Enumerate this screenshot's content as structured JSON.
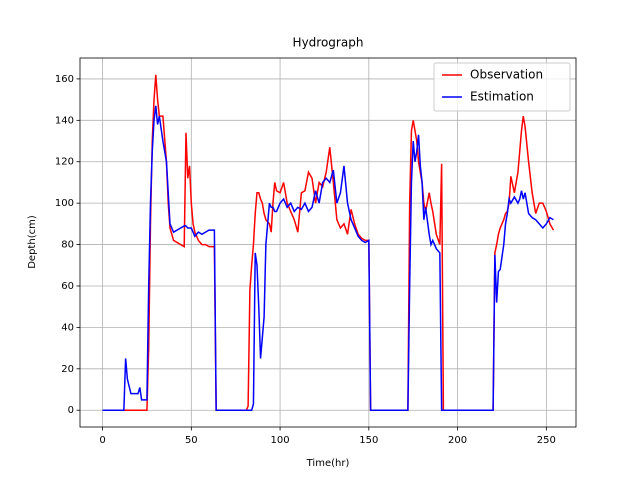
{
  "chart_data": {
    "type": "line",
    "title": "Hydrograph",
    "x_label": "Time(hr)",
    "y_label": "Depth(cm)",
    "x": [
      0,
      12,
      13,
      14,
      16,
      20,
      21,
      22,
      25,
      26,
      27,
      28,
      29,
      30,
      31,
      32,
      34,
      36,
      37,
      38,
      40,
      44,
      46,
      47,
      48,
      49,
      50,
      51,
      52,
      54,
      56,
      58,
      60,
      63,
      64,
      81,
      82,
      83,
      84,
      85,
      86,
      87,
      88,
      89,
      90,
      91,
      92,
      94,
      95,
      96,
      97,
      98,
      100,
      102,
      104,
      106,
      108,
      110,
      112,
      114,
      116,
      118,
      120,
      122,
      124,
      126,
      128,
      130,
      132,
      134,
      136,
      138,
      140,
      142,
      144,
      146,
      148,
      150,
      151,
      172,
      173,
      174,
      175,
      176,
      177,
      178,
      179,
      180,
      181,
      182,
      184,
      185,
      186,
      188,
      190,
      191,
      192,
      220,
      221,
      222,
      223,
      224,
      226,
      227,
      228,
      229,
      230,
      232,
      234,
      235,
      236,
      237,
      238,
      240,
      242,
      244,
      246,
      248,
      250,
      252,
      254
    ],
    "series": [
      {
        "name": "Observation",
        "color": "#ff0000",
        "values": [
          0,
          0,
          0,
          0,
          0,
          0,
          0,
          0,
          0,
          30,
          90,
          130,
          150,
          162,
          150,
          142,
          142,
          120,
          100,
          88,
          82,
          80,
          79,
          134,
          112,
          118,
          100,
          90,
          86,
          82,
          80,
          80,
          79,
          79,
          0,
          0,
          2,
          58,
          70,
          80,
          95,
          105,
          105,
          102,
          100,
          95,
          92,
          90,
          86,
          100,
          110,
          106,
          105,
          110,
          100,
          96,
          92,
          86,
          105,
          106,
          115,
          112,
          100,
          110,
          108,
          115,
          127,
          110,
          92,
          88,
          90,
          85,
          97,
          90,
          85,
          83,
          82,
          82,
          0,
          0,
          100,
          135,
          140,
          135,
          130,
          120,
          115,
          110,
          100,
          96,
          105,
          100,
          96,
          85,
          80,
          119,
          0,
          0,
          76,
          80,
          85,
          88,
          92,
          95,
          96,
          100,
          113,
          105,
          115,
          125,
          135,
          142,
          137,
          120,
          105,
          95,
          100,
          100,
          96,
          90,
          87
        ]
      },
      {
        "name": "Estimation",
        "color": "#0000ff",
        "values": [
          0,
          0,
          25,
          15,
          8,
          8,
          11,
          5,
          5,
          60,
          100,
          125,
          140,
          147,
          138,
          142,
          130,
          120,
          105,
          90,
          86,
          88,
          89,
          89,
          88,
          88,
          88,
          86,
          84,
          86,
          85,
          86,
          87,
          87,
          0,
          0,
          0,
          0,
          0,
          3,
          76,
          70,
          50,
          25,
          35,
          45,
          80,
          100,
          98,
          98,
          96,
          96,
          100,
          102,
          98,
          100,
          96,
          98,
          97,
          100,
          96,
          98,
          106,
          100,
          110,
          112,
          110,
          116,
          100,
          105,
          118,
          100,
          92,
          88,
          84,
          82,
          81,
          82,
          0,
          0,
          60,
          110,
          130,
          120,
          125,
          133,
          118,
          110,
          92,
          98,
          85,
          80,
          82,
          78,
          76,
          0,
          0,
          0,
          75,
          52,
          67,
          68,
          80,
          90,
          95,
          102,
          100,
          103,
          100,
          102,
          106,
          102,
          105,
          95,
          93,
          92,
          90,
          88,
          90,
          93,
          92
        ]
      }
    ],
    "xlim": [
      -12.7,
      266.7
    ],
    "ylim": [
      -8.1,
      170.1
    ],
    "xticks": [
      0,
      50,
      100,
      150,
      200,
      250
    ],
    "yticks": [
      0,
      20,
      40,
      60,
      80,
      100,
      120,
      140,
      160
    ],
    "grid": true,
    "legend": "upper right"
  }
}
